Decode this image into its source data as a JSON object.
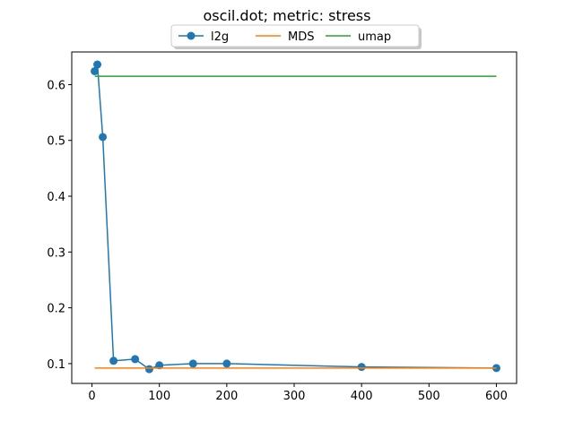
{
  "chart_data": {
    "type": "line",
    "title": "oscil.dot; metric: stress",
    "xlabel": "",
    "ylabel": "",
    "xlim": [
      -30,
      630
    ],
    "ylim": [
      0.0645,
      0.6585
    ],
    "xticks": [
      0,
      100,
      200,
      300,
      400,
      500,
      600
    ],
    "yticks": [
      0.1,
      0.2,
      0.3,
      0.4,
      0.5,
      0.6
    ],
    "ytick_labels": [
      "0.1",
      "0.2",
      "0.3",
      "0.4",
      "0.5",
      "0.6"
    ],
    "grid": false,
    "legend": {
      "placement": "top-center-outside",
      "ncol": 3,
      "shadow": true
    },
    "series": [
      {
        "name": "l2g",
        "color": "#1f77b4",
        "marker": "circle",
        "x": [
          4,
          8,
          16,
          32,
          64,
          85,
          100,
          150,
          200,
          400,
          600
        ],
        "y": [
          0.624,
          0.636,
          0.506,
          0.105,
          0.108,
          0.09,
          0.097,
          0.1,
          0.1,
          0.094,
          0.092
        ]
      },
      {
        "name": "MDS",
        "color": "#ff7f0e",
        "marker": "none",
        "x": [
          4,
          600
        ],
        "y": [
          0.092,
          0.092
        ]
      },
      {
        "name": "umap",
        "color": "#2ca02c",
        "marker": "none",
        "x": [
          4,
          600
        ],
        "y": [
          0.615,
          0.615
        ]
      }
    ]
  }
}
